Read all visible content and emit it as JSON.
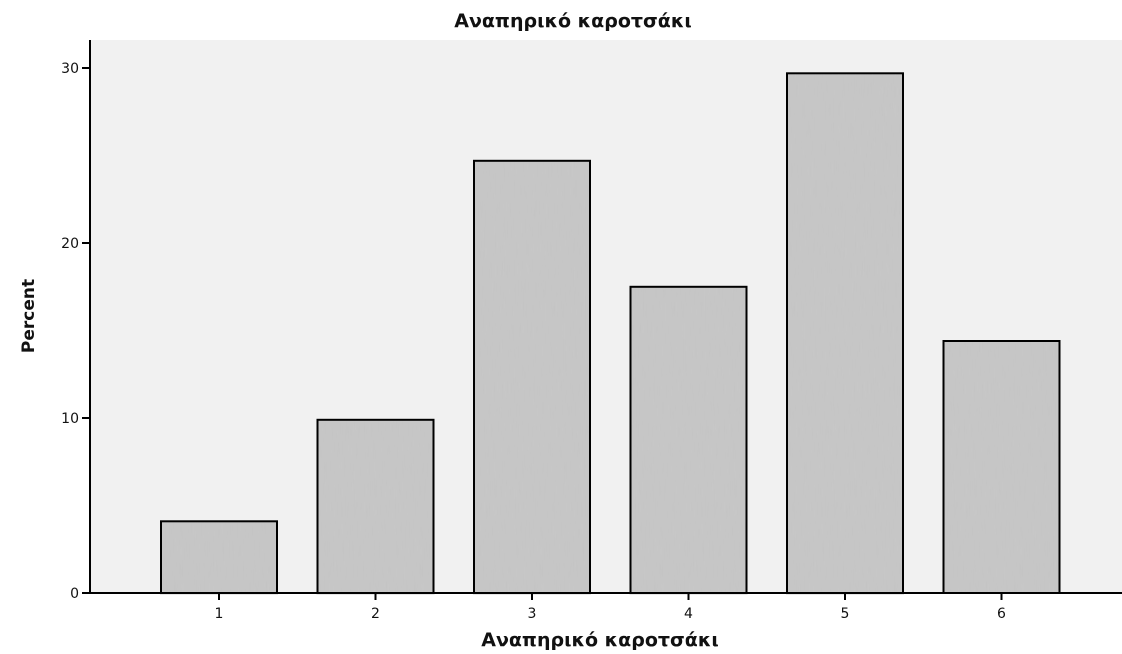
{
  "chart_data": {
    "type": "bar",
    "title": "Αναπηρικό καροτσάκι",
    "xlabel": "Αναπηρικό καροτσάκι",
    "ylabel": "Percent",
    "categories": [
      "1",
      "2",
      "3",
      "4",
      "5",
      "6"
    ],
    "values": [
      4.1,
      9.9,
      24.7,
      17.5,
      29.7,
      14.4
    ],
    "ylim": [
      0,
      32
    ],
    "yticks": [
      "0",
      "10",
      "20",
      "30"
    ],
    "grid": false,
    "colors": {
      "plot_background": "#f1f1f1",
      "bar_fill": "#c9c9c9",
      "bar_outline": "#000000",
      "axis": "#000000"
    }
  }
}
